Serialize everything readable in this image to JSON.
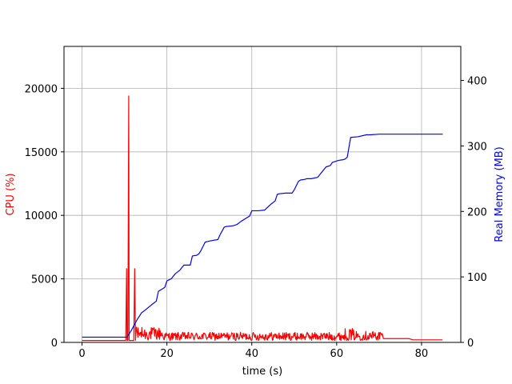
{
  "chart_data": {
    "type": "line",
    "xlabel": "time (s)",
    "xlim": [
      -4.25,
      89.25
    ],
    "xticks": [
      0,
      20,
      40,
      60,
      80
    ],
    "grid": true,
    "y_left": {
      "label": "CPU (%)",
      "color": "#ff0000",
      "ylim": [
        0,
        23300
      ],
      "ticks": [
        0,
        5000,
        10000,
        15000,
        20000
      ]
    },
    "y_right": {
      "label": "Real Memory (MB)",
      "color": "#0000ff",
      "ylim": [
        0,
        452
      ],
      "ticks": [
        0,
        100,
        200,
        300,
        400
      ]
    },
    "series": [
      {
        "axis": "left",
        "color": "#ff0000",
        "base_value": 150,
        "x": [
          0,
          10.3,
          10.5,
          10.6,
          10.8,
          11.0,
          11.1,
          11.3,
          11.5,
          12.2,
          12.4,
          12.6,
          12.8,
          13.2
        ],
        "values": [
          150,
          150,
          5800,
          150,
          150,
          19400,
          150,
          150,
          150,
          150,
          5800,
          150,
          1200,
          400
        ],
        "noise_segments": [
          {
            "x_start": 13.2,
            "x_end": 19,
            "max": 1200
          },
          {
            "x_start": 19,
            "x_end": 62,
            "max": 800
          },
          {
            "x_start": 62,
            "x_end": 64,
            "max": 1100
          },
          {
            "x_start": 64,
            "x_end": 71,
            "max": 900
          }
        ],
        "tail": {
          "x": [
            71,
            77,
            78,
            84.9
          ],
          "values": [
            300,
            300,
            200,
            200
          ]
        }
      },
      {
        "axis": "right",
        "color": "#0000ff",
        "x": [
          0,
          10.2,
          10.6,
          11.5,
          12.0,
          13.0,
          14.0,
          15.0,
          16.5,
          17.5,
          18.0,
          18.5,
          19.5,
          20.0,
          21.0,
          22.0,
          23.0,
          24.0,
          25.5,
          26.0,
          27.0,
          27.5,
          28.0,
          29.0,
          29.5,
          31.0,
          32.0,
          32.5,
          33.5,
          34.0,
          35.5,
          36.5,
          37.5,
          39.5,
          40.0,
          41.5,
          43.0,
          44.5,
          45.5,
          46.0,
          46.5,
          48.0,
          49.5,
          50.0,
          51.0,
          51.5,
          52.5,
          53.0,
          54.0,
          55.5,
          57.0,
          57.5,
          58.5,
          59.0,
          60.5,
          61.5,
          62.0,
          62.5,
          63.0,
          63.3,
          65.0,
          67.0,
          68.0,
          70.0,
          72.0,
          75.0,
          80.0,
          85.0
        ],
        "values": [
          8,
          8,
          8,
          17,
          23,
          35,
          45,
          50,
          58,
          63,
          78,
          80,
          84,
          94,
          97,
          105,
          110,
          118,
          118,
          132,
          133,
          135,
          140,
          153,
          154,
          156,
          157,
          164,
          176,
          177,
          178,
          180,
          185,
          193,
          201,
          201,
          202,
          211,
          216,
          226,
          227,
          228,
          228,
          233,
          246,
          248,
          249,
          250,
          250,
          252,
          264,
          268,
          270,
          275,
          278,
          279,
          280,
          283,
          302,
          313,
          314,
          317,
          317,
          318,
          318,
          318,
          318,
          318
        ]
      }
    ]
  }
}
